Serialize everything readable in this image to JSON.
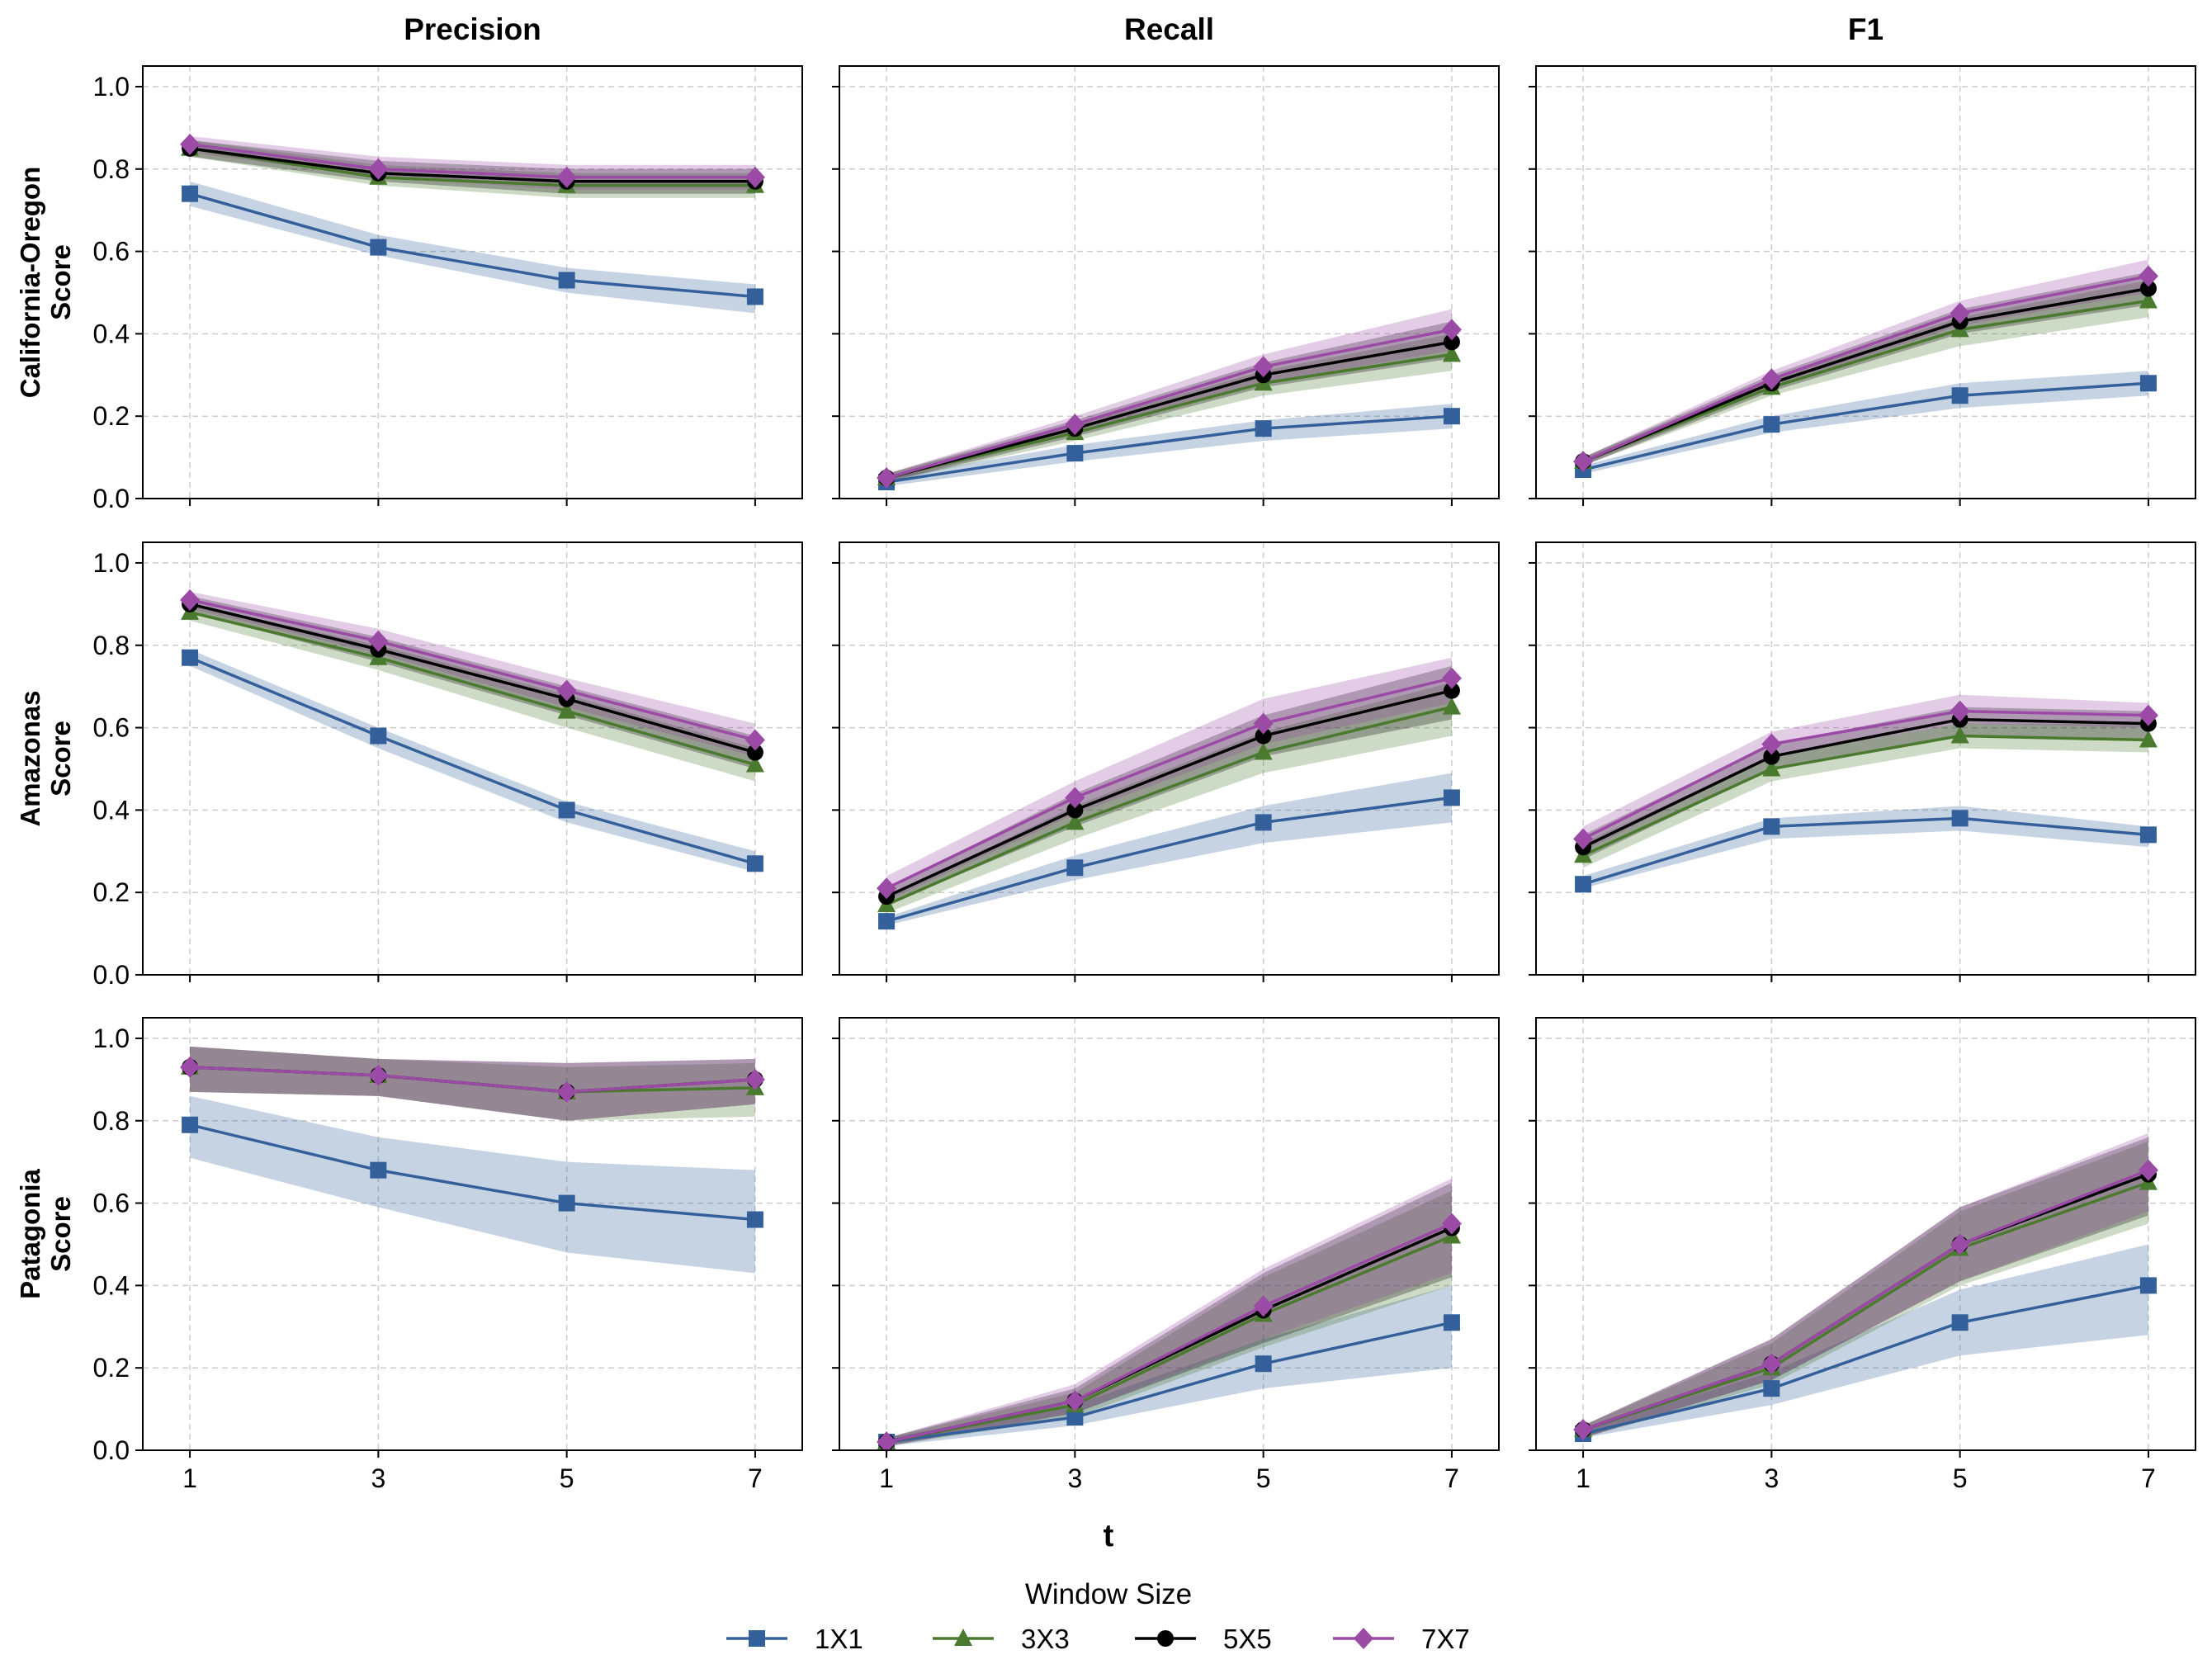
{
  "chart_data": {
    "type": "line",
    "columns": [
      "Precision",
      "Recall",
      "F1"
    ],
    "rows": [
      {
        "label_line1": "California-Oregon",
        "label_line2": "Score"
      },
      {
        "label_line1": "Amazonas",
        "label_line2": "Score"
      },
      {
        "label_line1": "Patagonia",
        "label_line2": "Score"
      }
    ],
    "xlabel": "t",
    "x": [
      1,
      3,
      5,
      7
    ],
    "ylim": [
      0,
      1.05
    ],
    "yticks": [
      "0.0",
      "0.2",
      "0.4",
      "0.6",
      "0.8",
      "1.0"
    ],
    "ytick_values": [
      0,
      0.2,
      0.4,
      0.6,
      0.8,
      1.0
    ],
    "grid": true,
    "legend": {
      "title": "Window Size",
      "placement": "bottom-center"
    },
    "series_styles": [
      {
        "name": "1X1",
        "color": "#33609a",
        "marker": "square"
      },
      {
        "name": "3X3",
        "color": "#4a7a2e",
        "marker": "triangle"
      },
      {
        "name": "5X5",
        "color": "#000000",
        "marker": "circle"
      },
      {
        "name": "7X7",
        "color": "#9b4aa6",
        "marker": "diamond"
      }
    ],
    "panels": [
      [
        {
          "column": "Precision",
          "series": [
            {
              "name": "1X1",
              "values": [
                0.74,
                0.61,
                0.53,
                0.49
              ],
              "lower": [
                0.71,
                0.59,
                0.5,
                0.45
              ],
              "upper": [
                0.77,
                0.64,
                0.56,
                0.52
              ]
            },
            {
              "name": "3X3",
              "values": [
                0.85,
                0.78,
                0.76,
                0.76
              ],
              "lower": [
                0.83,
                0.76,
                0.73,
                0.73
              ],
              "upper": [
                0.87,
                0.81,
                0.79,
                0.79
              ]
            },
            {
              "name": "5X5",
              "values": [
                0.85,
                0.79,
                0.77,
                0.77
              ],
              "lower": [
                0.83,
                0.77,
                0.74,
                0.74
              ],
              "upper": [
                0.87,
                0.82,
                0.8,
                0.8
              ]
            },
            {
              "name": "7X7",
              "values": [
                0.86,
                0.8,
                0.78,
                0.78
              ],
              "lower": [
                0.84,
                0.78,
                0.75,
                0.75
              ],
              "upper": [
                0.88,
                0.83,
                0.81,
                0.81
              ]
            }
          ]
        },
        {
          "column": "Recall",
          "series": [
            {
              "name": "1X1",
              "values": [
                0.04,
                0.11,
                0.17,
                0.2
              ],
              "lower": [
                0.03,
                0.09,
                0.14,
                0.17
              ],
              "upper": [
                0.05,
                0.13,
                0.19,
                0.23
              ]
            },
            {
              "name": "3X3",
              "values": [
                0.05,
                0.16,
                0.28,
                0.35
              ],
              "lower": [
                0.04,
                0.14,
                0.25,
                0.31
              ],
              "upper": [
                0.06,
                0.18,
                0.31,
                0.4
              ]
            },
            {
              "name": "5X5",
              "values": [
                0.05,
                0.17,
                0.3,
                0.38
              ],
              "lower": [
                0.04,
                0.15,
                0.27,
                0.34
              ],
              "upper": [
                0.06,
                0.19,
                0.33,
                0.43
              ]
            },
            {
              "name": "7X7",
              "values": [
                0.05,
                0.18,
                0.32,
                0.41
              ],
              "lower": [
                0.04,
                0.16,
                0.28,
                0.36
              ],
              "upper": [
                0.06,
                0.2,
                0.35,
                0.46
              ]
            }
          ]
        },
        {
          "column": "F1",
          "series": [
            {
              "name": "1X1",
              "values": [
                0.07,
                0.18,
                0.25,
                0.28
              ],
              "lower": [
                0.06,
                0.16,
                0.22,
                0.25
              ],
              "upper": [
                0.08,
                0.2,
                0.28,
                0.31
              ]
            },
            {
              "name": "3X3",
              "values": [
                0.09,
                0.27,
                0.41,
                0.48
              ],
              "lower": [
                0.08,
                0.25,
                0.37,
                0.44
              ],
              "upper": [
                0.1,
                0.29,
                0.44,
                0.53
              ]
            },
            {
              "name": "5X5",
              "values": [
                0.09,
                0.28,
                0.43,
                0.51
              ],
              "lower": [
                0.08,
                0.26,
                0.4,
                0.47
              ],
              "upper": [
                0.1,
                0.3,
                0.46,
                0.55
              ]
            },
            {
              "name": "7X7",
              "values": [
                0.09,
                0.29,
                0.45,
                0.54
              ],
              "lower": [
                0.08,
                0.27,
                0.42,
                0.5
              ],
              "upper": [
                0.1,
                0.31,
                0.48,
                0.58
              ]
            }
          ]
        }
      ],
      [
        {
          "column": "Precision",
          "series": [
            {
              "name": "1X1",
              "values": [
                0.77,
                0.58,
                0.4,
                0.27
              ],
              "lower": [
                0.75,
                0.55,
                0.37,
                0.25
              ],
              "upper": [
                0.79,
                0.6,
                0.42,
                0.3
              ]
            },
            {
              "name": "3X3",
              "values": [
                0.88,
                0.77,
                0.64,
                0.51
              ],
              "lower": [
                0.86,
                0.74,
                0.6,
                0.47
              ],
              "upper": [
                0.9,
                0.8,
                0.68,
                0.55
              ]
            },
            {
              "name": "5X5",
              "values": [
                0.9,
                0.79,
                0.67,
                0.54
              ],
              "lower": [
                0.88,
                0.76,
                0.63,
                0.5
              ],
              "upper": [
                0.92,
                0.82,
                0.7,
                0.58
              ]
            },
            {
              "name": "7X7",
              "values": [
                0.91,
                0.81,
                0.69,
                0.57
              ],
              "lower": [
                0.89,
                0.78,
                0.65,
                0.53
              ],
              "upper": [
                0.93,
                0.84,
                0.72,
                0.61
              ]
            }
          ]
        },
        {
          "column": "Recall",
          "series": [
            {
              "name": "1X1",
              "values": [
                0.13,
                0.26,
                0.37,
                0.43
              ],
              "lower": [
                0.12,
                0.23,
                0.32,
                0.37
              ],
              "upper": [
                0.14,
                0.29,
                0.41,
                0.49
              ]
            },
            {
              "name": "3X3",
              "values": [
                0.17,
                0.37,
                0.54,
                0.65
              ],
              "lower": [
                0.15,
                0.33,
                0.49,
                0.58
              ],
              "upper": [
                0.19,
                0.41,
                0.59,
                0.71
              ]
            },
            {
              "name": "5X5",
              "values": [
                0.19,
                0.4,
                0.58,
                0.69
              ],
              "lower": [
                0.17,
                0.36,
                0.53,
                0.62
              ],
              "upper": [
                0.21,
                0.44,
                0.63,
                0.75
              ]
            },
            {
              "name": "7X7",
              "values": [
                0.21,
                0.43,
                0.61,
                0.72
              ],
              "lower": [
                0.18,
                0.39,
                0.56,
                0.66
              ],
              "upper": [
                0.24,
                0.47,
                0.67,
                0.77
              ]
            }
          ]
        },
        {
          "column": "F1",
          "series": [
            {
              "name": "1X1",
              "values": [
                0.22,
                0.36,
                0.38,
                0.34
              ],
              "lower": [
                0.21,
                0.33,
                0.35,
                0.31
              ],
              "upper": [
                0.24,
                0.38,
                0.41,
                0.36
              ]
            },
            {
              "name": "3X3",
              "values": [
                0.29,
                0.5,
                0.58,
                0.57
              ],
              "lower": [
                0.26,
                0.47,
                0.55,
                0.54
              ],
              "upper": [
                0.32,
                0.53,
                0.61,
                0.61
              ]
            },
            {
              "name": "5X5",
              "values": [
                0.31,
                0.53,
                0.62,
                0.61
              ],
              "lower": [
                0.28,
                0.5,
                0.58,
                0.57
              ],
              "upper": [
                0.34,
                0.56,
                0.65,
                0.64
              ]
            },
            {
              "name": "7X7",
              "values": [
                0.33,
                0.56,
                0.64,
                0.63
              ],
              "lower": [
                0.3,
                0.53,
                0.61,
                0.6
              ],
              "upper": [
                0.36,
                0.59,
                0.68,
                0.66
              ]
            }
          ]
        }
      ],
      [
        {
          "column": "Precision",
          "series": [
            {
              "name": "1X1",
              "values": [
                0.79,
                0.68,
                0.6,
                0.56
              ],
              "lower": [
                0.71,
                0.59,
                0.48,
                0.43
              ],
              "upper": [
                0.86,
                0.76,
                0.7,
                0.68
              ]
            },
            {
              "name": "3X3",
              "values": [
                0.93,
                0.91,
                0.87,
                0.88
              ],
              "lower": [
                0.87,
                0.86,
                0.8,
                0.81
              ],
              "upper": [
                0.98,
                0.95,
                0.93,
                0.94
              ]
            },
            {
              "name": "5X5",
              "values": [
                0.93,
                0.91,
                0.87,
                0.9
              ],
              "lower": [
                0.87,
                0.86,
                0.8,
                0.84
              ],
              "upper": [
                0.98,
                0.95,
                0.94,
                0.95
              ]
            },
            {
              "name": "7X7",
              "values": [
                0.93,
                0.91,
                0.87,
                0.9
              ],
              "lower": [
                0.87,
                0.86,
                0.8,
                0.84
              ],
              "upper": [
                0.98,
                0.95,
                0.94,
                0.95
              ]
            }
          ]
        },
        {
          "column": "Recall",
          "series": [
            {
              "name": "1X1",
              "values": [
                0.02,
                0.08,
                0.21,
                0.31
              ],
              "lower": [
                0.01,
                0.06,
                0.15,
                0.2
              ],
              "upper": [
                0.03,
                0.11,
                0.27,
                0.4
              ]
            },
            {
              "name": "3X3",
              "values": [
                0.02,
                0.11,
                0.33,
                0.52
              ],
              "lower": [
                0.01,
                0.08,
                0.25,
                0.4
              ],
              "upper": [
                0.03,
                0.14,
                0.42,
                0.63
              ]
            },
            {
              "name": "5X5",
              "values": [
                0.02,
                0.12,
                0.34,
                0.54
              ],
              "lower": [
                0.01,
                0.09,
                0.26,
                0.42
              ],
              "upper": [
                0.03,
                0.15,
                0.43,
                0.65
              ]
            },
            {
              "name": "7X7",
              "values": [
                0.02,
                0.12,
                0.35,
                0.55
              ],
              "lower": [
                0.01,
                0.09,
                0.27,
                0.43
              ],
              "upper": [
                0.03,
                0.16,
                0.44,
                0.66
              ]
            }
          ]
        },
        {
          "column": "F1",
          "series": [
            {
              "name": "1X1",
              "values": [
                0.04,
                0.15,
                0.31,
                0.4
              ],
              "lower": [
                0.03,
                0.11,
                0.23,
                0.28
              ],
              "upper": [
                0.05,
                0.19,
                0.39,
                0.5
              ]
            },
            {
              "name": "3X3",
              "values": [
                0.05,
                0.2,
                0.49,
                0.65
              ],
              "lower": [
                0.03,
                0.16,
                0.4,
                0.55
              ],
              "upper": [
                0.06,
                0.26,
                0.58,
                0.75
              ]
            },
            {
              "name": "5X5",
              "values": [
                0.05,
                0.21,
                0.5,
                0.67
              ],
              "lower": [
                0.03,
                0.17,
                0.41,
                0.57
              ],
              "upper": [
                0.06,
                0.27,
                0.59,
                0.76
              ]
            },
            {
              "name": "7X7",
              "values": [
                0.05,
                0.21,
                0.5,
                0.68
              ],
              "lower": [
                0.03,
                0.17,
                0.41,
                0.58
              ],
              "upper": [
                0.06,
                0.27,
                0.59,
                0.77
              ]
            }
          ]
        }
      ]
    ]
  }
}
